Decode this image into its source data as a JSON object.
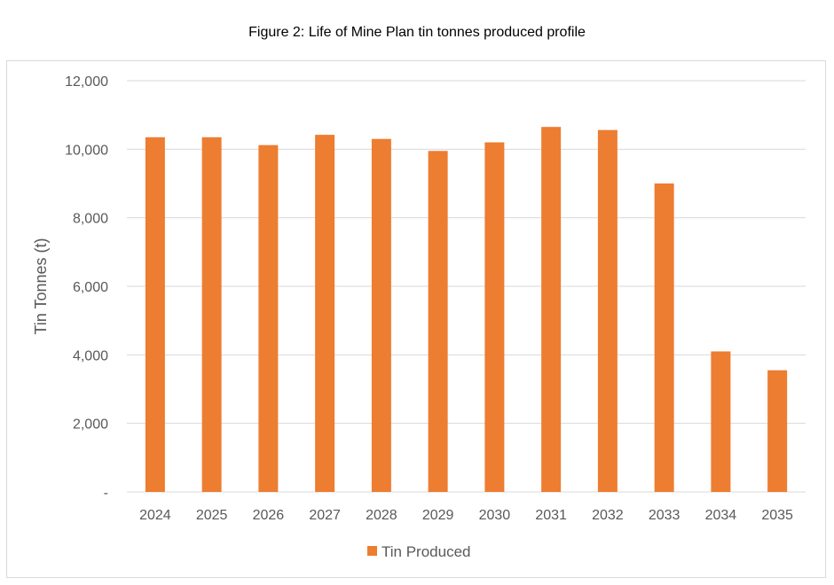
{
  "figure_title": "Figure 2: Life of Mine Plan tin tonnes produced profile",
  "colors": {
    "bar": "#ED7D31",
    "grid": "#d9d9d9",
    "text": "#595959"
  },
  "chart_data": {
    "type": "bar",
    "title": "",
    "xlabel": "",
    "ylabel": "Tin Tonnes (t)",
    "ylim": [
      0,
      12000
    ],
    "yticks": [
      0,
      2000,
      4000,
      6000,
      8000,
      10000,
      12000
    ],
    "ytick_labels": [
      "-",
      "2,000",
      "4,000",
      "6,000",
      "8,000",
      "10,000",
      "12,000"
    ],
    "grid": true,
    "legend_position": "bottom-center",
    "categories": [
      "2024",
      "2025",
      "2026",
      "2027",
      "2028",
      "2029",
      "2030",
      "2031",
      "2032",
      "2033",
      "2034",
      "2035"
    ],
    "series": [
      {
        "name": "Tin Produced",
        "values": [
          10350,
          10350,
          10120,
          10420,
          10300,
          9950,
          10200,
          10650,
          10560,
          9000,
          4100,
          3550
        ]
      }
    ]
  }
}
